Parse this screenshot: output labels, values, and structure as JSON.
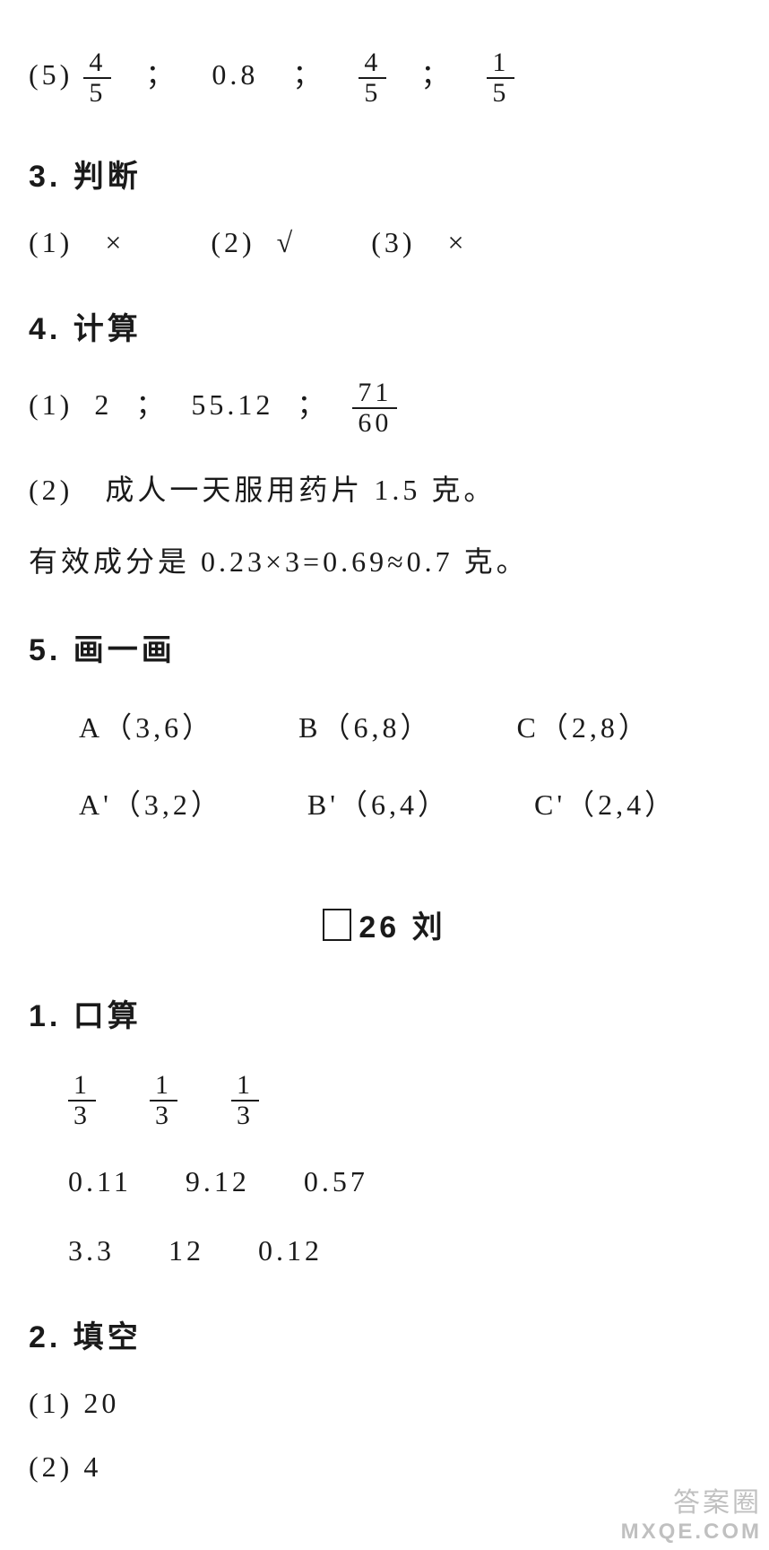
{
  "colors": {
    "text": "#1a1a1a",
    "background": "#ffffff",
    "watermark": "rgba(140,140,140,0.55)"
  },
  "q5_prefix": "(5)",
  "q5_f1_num": "4",
  "q5_f1_den": "5",
  "q5_v2": "0.8",
  "q5_f3_num": "4",
  "q5_f3_den": "5",
  "q5_f4_num": "1",
  "q5_f4_den": "5",
  "h3": "3.  判断",
  "j1_label": "(1)",
  "j1_val": "×",
  "j2_label": "(2)",
  "j2_val": "√",
  "j3_label": "(3)",
  "j3_val": "×",
  "h4": "4.  计算",
  "c1_label": "(1)",
  "c1_v1": "2",
  "c1_v2": "55.12",
  "c1_f_num": "71",
  "c1_f_den": "60",
  "c2_label": "(2)",
  "c2_text": "成人一天服用药片 1.5 克。",
  "c3_text": "有效成分是 0.23×3=0.69≈0.7 克。",
  "h5": "5.  画一画",
  "p_A": "A（3,6）",
  "p_B": "B（6,8）",
  "p_C": "C（2,8）",
  "p_Ap": "A'（3,2）",
  "p_Bp": "B'（6,4）",
  "p_Cp": "C'（2,4）",
  "session_label": "26 刘",
  "h_kousuan": "1.  口算",
  "k_r1c1_num": "1",
  "k_r1c1_den": "3",
  "k_r1c2_num": "1",
  "k_r1c2_den": "3",
  "k_r1c3_num": "1",
  "k_r1c3_den": "3",
  "k_r2c1": "0.11",
  "k_r2c2": "9.12",
  "k_r2c3": "0.57",
  "k_r3c1": "3.3",
  "k_r3c2": "12",
  "k_r3c3": "0.12",
  "h_tiankong": "2.  填空",
  "t1": "(1) 20",
  "t2": "(2) 4",
  "wm1": "答案圈",
  "wm2": "MXQE.COM",
  "semi": "；"
}
